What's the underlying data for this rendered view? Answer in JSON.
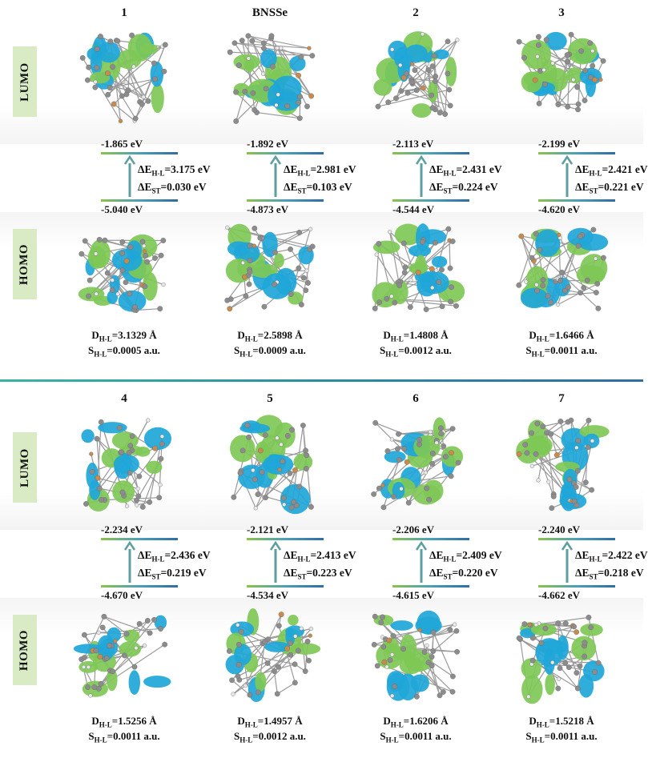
{
  "section_labels": {
    "lumo": "LUMO",
    "homo": "HOMO"
  },
  "rows": [
    {
      "compounds": [
        {
          "name": "1",
          "lumo": "-1.865 eV",
          "homo": "-5.040 eV",
          "dE": "=3.175 eV",
          "dEst": "=0.030 eV",
          "D": "=3.1329 Å",
          "S": "=0.0005 a.u."
        },
        {
          "name": "BNSSe",
          "lumo": "-1.892 eV",
          "homo": "-4.873 eV",
          "dE": "=2.981 eV",
          "dEst": "=0.103 eV",
          "D": "=2.5898 Å",
          "S": "=0.0009 a.u."
        },
        {
          "name": "2",
          "lumo": "-2.113 eV",
          "homo": "-4.544 eV",
          "dE": "=2.431 eV",
          "dEst": "=0.224 eV",
          "D": "=1.4808 Å",
          "S": "=0.0012 a.u."
        },
        {
          "name": "3",
          "lumo": "-2.199 eV",
          "homo": "-4.620 eV",
          "dE": "=2.421 eV",
          "dEst": "=0.221 eV",
          "D": "=1.6466 Å",
          "S": "=0.0011 a.u."
        }
      ]
    },
    {
      "compounds": [
        {
          "name": "4",
          "lumo": "-2.234 eV",
          "homo": "-4.670 eV",
          "dE": "=2.436 eV",
          "dEst": "=0.219 eV",
          "D": "=1.5256 Å",
          "S": "=0.0011 a.u."
        },
        {
          "name": "5",
          "lumo": "-2.121 eV",
          "homo": "-4.534 eV",
          "dE": "=2.413 eV",
          "dEst": "=0.223 eV",
          "D": "=1.4957 Å",
          "S": "=0.0012 a.u."
        },
        {
          "name": "6",
          "lumo": "-2.206 eV",
          "homo": "-4.615 eV",
          "dE": "=2.409 eV",
          "dEst": "=0.220 eV",
          "D": "=1.6206 Å",
          "S": "=0.0011 a.u."
        },
        {
          "name": "7",
          "lumo": "-2.240 eV",
          "homo": "-4.662 eV",
          "dE": "=2.422 eV",
          "dEst": "=0.218 eV",
          "D": "=1.5218 Å",
          "S": "=0.0011 a.u."
        }
      ]
    }
  ],
  "symbols": {
    "delta_E": "ΔE",
    "delta_E_sub": "H-L",
    "delta_ST": "ΔE",
    "delta_ST_sub": "ST",
    "D": "D",
    "D_sub": "H-L",
    "S": "S",
    "S_sub": "H-L"
  },
  "colors": {
    "lobe_green": "#7ec856",
    "lobe_blue": "#1fa6d8",
    "label_bg": "#d9ebc5",
    "arrow": "#5f9ea0",
    "divider": "#2a8ea0"
  }
}
